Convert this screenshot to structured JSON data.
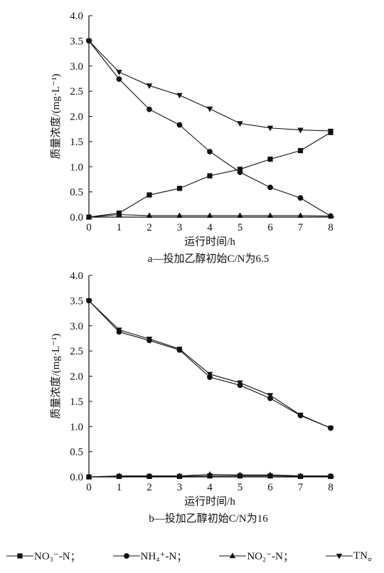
{
  "chart_data": [
    {
      "type": "line",
      "caption": "a—投加乙醇初始C/N为6.5",
      "xlabel": "运行时间/h",
      "ylabel": "质量浓度/(mg·L⁻¹)",
      "xlim": [
        0,
        8
      ],
      "ylim": [
        0,
        4
      ],
      "xticks": [
        "0",
        "1",
        "2",
        "3",
        "4",
        "5",
        "6",
        "7",
        "8"
      ],
      "yticks": [
        "0.0",
        "0.5",
        "1.0",
        "1.5",
        "2.0",
        "2.5",
        "3.0",
        "3.5",
        "4.0"
      ],
      "grid": false,
      "color": "#111111",
      "x": [
        0,
        1,
        2,
        3,
        4,
        5,
        6,
        7,
        8
      ],
      "series": [
        {
          "marker": "square",
          "values": [
            0.0,
            0.08,
            0.44,
            0.57,
            0.82,
            0.95,
            1.15,
            1.32,
            1.68
          ]
        },
        {
          "marker": "circle",
          "values": [
            3.5,
            2.74,
            2.14,
            1.83,
            1.3,
            0.89,
            0.59,
            0.38,
            0.02
          ]
        },
        {
          "marker": "triangle-up",
          "values": [
            0.0,
            0.05,
            0.03,
            0.03,
            0.03,
            0.03,
            0.03,
            0.03,
            0.02
          ]
        },
        {
          "marker": "triangle-down",
          "values": [
            3.5,
            2.88,
            2.61,
            2.42,
            2.15,
            1.86,
            1.77,
            1.73,
            1.71
          ]
        }
      ]
    },
    {
      "type": "line",
      "caption": "b—投加乙醇初始C/N为16",
      "xlabel": "运行时间/h",
      "ylabel": "质量浓度/(mg·L⁻¹)",
      "xlim": [
        0,
        8
      ],
      "ylim": [
        0,
        4
      ],
      "xticks": [
        "0",
        "1",
        "2",
        "3",
        "4",
        "5",
        "6",
        "7",
        "8"
      ],
      "yticks": [
        "0.0",
        "0.5",
        "1.0",
        "1.5",
        "2.0",
        "2.5",
        "3.0",
        "3.5",
        "4.0"
      ],
      "grid": false,
      "color": "#111111",
      "x": [
        0,
        1,
        2,
        3,
        4,
        5,
        6,
        7,
        8
      ],
      "series": [
        {
          "marker": "square",
          "values": [
            0.0,
            0.01,
            0.01,
            0.01,
            0.02,
            0.02,
            0.02,
            0.01,
            0.01
          ]
        },
        {
          "marker": "circle",
          "values": [
            3.5,
            2.88,
            2.71,
            2.52,
            1.98,
            1.82,
            1.56,
            1.22,
            0.97
          ]
        },
        {
          "marker": "triangle-up",
          "values": [
            0.0,
            0.02,
            0.02,
            0.02,
            0.05,
            0.04,
            0.04,
            0.02,
            0.02
          ]
        },
        {
          "marker": "triangle-down",
          "values": [
            3.5,
            2.92,
            2.74,
            2.54,
            2.04,
            1.87,
            1.62,
            1.23,
            0.97
          ]
        }
      ]
    }
  ],
  "legend": {
    "position": "bottom",
    "entries": [
      {
        "marker": "square",
        "name": "NO₃⁻-N"
      },
      {
        "marker": "circle",
        "name": "NH₄⁺-N"
      },
      {
        "marker": "triangle-up",
        "name": "NO₂⁻-N"
      },
      {
        "marker": "triangle-down",
        "name": "TN"
      }
    ],
    "separator": "；",
    "terminator": "。"
  }
}
